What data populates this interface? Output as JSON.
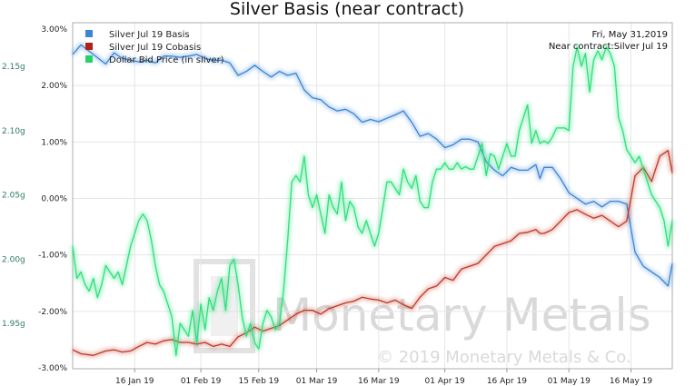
{
  "chart_data": {
    "type": "line",
    "title": "Silver Basis (near contract)",
    "info": {
      "date": "Fri, May 31,2019",
      "contract": "Near contract:Silver Jul 19"
    },
    "watermark": {
      "brand": "Monetary Metals",
      "copyright": "© 2019 Monetary Metals & Co."
    },
    "x_ticks": [
      "16 Jan 19",
      "01 Feb 19",
      "15 Feb 19",
      "01 Mar 19",
      "16 Mar 19",
      "01 Apr 19",
      "16 Apr 19",
      "01 May 19",
      "16 May 19"
    ],
    "right_axis": {
      "ticks": [
        "3.00%",
        "2.00%",
        "1.00%",
        "0.00%",
        "-1.00%",
        "-2.00%",
        "-3.00%"
      ],
      "ylim": [
        -3.0,
        3.0
      ]
    },
    "left_axis": {
      "ticks": [
        "2.15g",
        "2.10g",
        "2.05g",
        "2.00g",
        "1.95g"
      ],
      "ylim": [
        1.915,
        2.175
      ]
    },
    "x_range": [
      0,
      145
    ],
    "x_tick_days": [
      15,
      31,
      45,
      59,
      74,
      90,
      105,
      120,
      135
    ],
    "colors": {
      "basis": "#3b86d6",
      "cobasis": "#c0392b",
      "price": "#2ee07a"
    },
    "series": [
      {
        "name": "Silver Jul 19 Basis",
        "axis": "right",
        "x": [
          0,
          2,
          5,
          8,
          10,
          12,
          14,
          16,
          18,
          20,
          22,
          24,
          26,
          28,
          30,
          32,
          34,
          36,
          38,
          40,
          42,
          44,
          46,
          48,
          50,
          52,
          54,
          56,
          58,
          60,
          62,
          64,
          66,
          68,
          70,
          72,
          74,
          76,
          78,
          80,
          82,
          84,
          86,
          88,
          90,
          92,
          94,
          96,
          98,
          100,
          102,
          104,
          106,
          108,
          110,
          112,
          113,
          114,
          116,
          118,
          120,
          122,
          124,
          126,
          128,
          130,
          132,
          134,
          136,
          138,
          140,
          142,
          144,
          145
        ],
        "values": [
          2.55,
          2.72,
          2.55,
          2.38,
          2.58,
          2.48,
          2.45,
          2.42,
          2.45,
          2.4,
          2.52,
          2.52,
          2.5,
          2.52,
          2.55,
          2.48,
          2.44,
          2.45,
          2.4,
          2.18,
          2.25,
          2.36,
          2.25,
          2.15,
          2.25,
          2.18,
          2.22,
          1.92,
          1.78,
          1.75,
          1.62,
          1.55,
          1.58,
          1.5,
          1.35,
          1.4,
          1.36,
          1.42,
          1.48,
          1.55,
          1.35,
          1.1,
          1.15,
          1.05,
          0.9,
          0.95,
          1.05,
          1.05,
          1.0,
          0.65,
          0.5,
          0.4,
          0.55,
          0.5,
          0.5,
          0.6,
          0.35,
          0.55,
          0.55,
          0.35,
          0.1,
          0.0,
          -0.1,
          -0.05,
          -0.15,
          -0.05,
          -0.05,
          -0.1,
          -0.95,
          -1.2,
          -1.3,
          -1.4,
          -1.55,
          -1.15
        ]
      },
      {
        "name": "Silver Jul 19 Cobasis",
        "axis": "right",
        "x": [
          0,
          2,
          5,
          8,
          10,
          12,
          14,
          16,
          18,
          20,
          22,
          24,
          26,
          28,
          30,
          32,
          34,
          36,
          38,
          40,
          42,
          44,
          46,
          48,
          50,
          52,
          54,
          56,
          58,
          60,
          62,
          64,
          66,
          68,
          70,
          72,
          74,
          76,
          78,
          80,
          82,
          84,
          86,
          88,
          90,
          92,
          94,
          96,
          98,
          100,
          102,
          104,
          106,
          108,
          110,
          112,
          113,
          114,
          116,
          118,
          120,
          122,
          124,
          126,
          128,
          130,
          132,
          134,
          136,
          138,
          140,
          142,
          144,
          145
        ],
        "values": [
          -2.68,
          -2.75,
          -2.78,
          -2.7,
          -2.68,
          -2.72,
          -2.7,
          -2.62,
          -2.55,
          -2.58,
          -2.52,
          -2.5,
          -2.55,
          -2.55,
          -2.58,
          -2.55,
          -2.62,
          -2.58,
          -2.62,
          -2.45,
          -2.38,
          -2.28,
          -2.35,
          -2.3,
          -2.25,
          -2.15,
          -2.05,
          -1.98,
          -1.98,
          -2.05,
          -1.95,
          -1.9,
          -1.85,
          -1.82,
          -1.75,
          -1.78,
          -1.8,
          -1.85,
          -1.8,
          -1.88,
          -1.95,
          -1.75,
          -1.6,
          -1.55,
          -1.4,
          -1.45,
          -1.25,
          -1.2,
          -1.15,
          -1.0,
          -0.85,
          -0.8,
          -0.75,
          -0.62,
          -0.6,
          -0.55,
          -0.62,
          -0.62,
          -0.55,
          -0.4,
          -0.25,
          -0.2,
          -0.28,
          -0.35,
          -0.3,
          -0.4,
          -0.5,
          -0.4,
          0.4,
          0.55,
          0.3,
          0.75,
          0.85,
          0.45
        ]
      },
      {
        "name": "Dollar Bid Price (in silver)",
        "axis": "left",
        "x": [
          0,
          1,
          2,
          3,
          4,
          5,
          6,
          7,
          8,
          9,
          10,
          11,
          12,
          13,
          14,
          15,
          16,
          17,
          18,
          19,
          20,
          21,
          22,
          23,
          24,
          25,
          26,
          27,
          28,
          29,
          30,
          31,
          32,
          33,
          34,
          35,
          36,
          37,
          38,
          39,
          40,
          41,
          42,
          43,
          44,
          45,
          46,
          47,
          48,
          49,
          50,
          51,
          52,
          53,
          54,
          55,
          56,
          57,
          58,
          59,
          60,
          61,
          62,
          63,
          64,
          65,
          66,
          67,
          68,
          69,
          70,
          71,
          72,
          73,
          74,
          75,
          76,
          77,
          78,
          79,
          80,
          81,
          82,
          83,
          84,
          85,
          86,
          87,
          88,
          89,
          90,
          91,
          92,
          93,
          94,
          95,
          96,
          97,
          98,
          99,
          100,
          101,
          102,
          103,
          104,
          105,
          106,
          107,
          108,
          109,
          110,
          111,
          112,
          113,
          114,
          115,
          116,
          117,
          118,
          119,
          120,
          121,
          122,
          123,
          124,
          125,
          126,
          127,
          128,
          129,
          130,
          131,
          132,
          133,
          134,
          135,
          136,
          137,
          138,
          139,
          140,
          141,
          142,
          143,
          144,
          145
        ],
        "values": [
          2.01,
          1.985,
          1.99,
          1.98,
          1.975,
          1.985,
          1.97,
          1.98,
          1.995,
          1.99,
          1.985,
          1.99,
          1.98,
          1.995,
          2.01,
          2.02,
          2.03,
          2.035,
          2.03,
          2.015,
          1.995,
          1.98,
          1.975,
          1.965,
          1.955,
          1.925,
          1.95,
          1.945,
          1.94,
          1.96,
          1.935,
          1.965,
          1.945,
          1.97,
          1.96,
          1.975,
          1.985,
          1.96,
          1.995,
          2.0,
          1.98,
          1.955,
          1.94,
          1.95,
          1.935,
          1.93,
          1.95,
          1.96,
          1.955,
          1.945,
          1.95,
          1.975,
          2.015,
          2.06,
          2.065,
          2.06,
          2.08,
          2.05,
          2.04,
          2.05,
          2.035,
          2.02,
          2.05,
          2.04,
          2.035,
          2.06,
          2.03,
          2.045,
          2.04,
          2.025,
          2.02,
          2.03,
          2.02,
          2.01,
          2.02,
          2.04,
          2.06,
          2.06,
          2.055,
          2.05,
          2.07,
          2.06,
          2.055,
          2.065,
          2.045,
          2.04,
          2.04,
          2.06,
          2.07,
          2.07,
          2.075,
          2.07,
          2.07,
          2.075,
          2.07,
          2.072,
          2.07,
          2.07,
          2.08,
          2.09,
          2.065,
          2.082,
          2.08,
          2.07,
          2.08,
          2.09,
          2.08,
          2.08,
          2.1,
          2.11,
          2.12,
          2.09,
          2.1,
          2.09,
          2.092,
          2.09,
          2.095,
          2.102,
          2.102,
          2.102,
          2.1,
          2.15,
          2.165,
          2.15,
          2.16,
          2.13,
          2.155,
          2.162,
          2.155,
          2.165,
          2.16,
          2.15,
          2.11,
          2.1,
          2.085,
          2.08,
          2.075,
          2.08,
          2.07,
          2.06,
          2.05,
          2.045,
          2.04,
          2.03,
          2.01,
          2.03
        ]
      }
    ]
  }
}
